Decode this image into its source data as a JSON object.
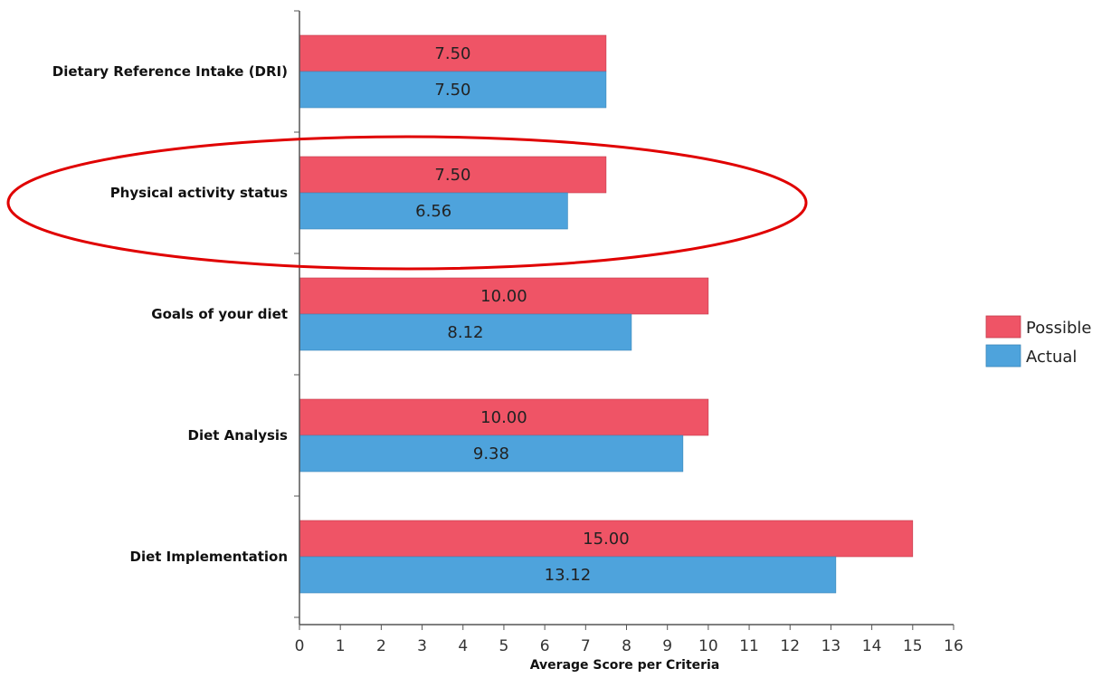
{
  "chart_data": {
    "type": "bar",
    "orientation": "horizontal",
    "categories": [
      "Dietary Reference Intake (DRI)",
      "Physical activity status",
      "Goals of your diet",
      "Diet Analysis",
      "Diet Implementation"
    ],
    "series": [
      {
        "name": "Possible",
        "color": "#ef5466",
        "values": [
          7.5,
          7.5,
          10.0,
          10.0,
          15.0
        ],
        "labels": [
          "7.50",
          "7.50",
          "10.00",
          "10.00",
          "15.00"
        ]
      },
      {
        "name": "Actual",
        "color": "#4ea3dc",
        "values": [
          7.5,
          6.56,
          8.12,
          9.38,
          13.12
        ],
        "labels": [
          "7.50",
          "6.56",
          "8.12",
          "9.38",
          "13.12"
        ]
      }
    ],
    "xlabel": "Average Score per Criteria",
    "xlim": [
      0,
      16
    ],
    "xticks": [
      "0",
      "1",
      "2",
      "3",
      "4",
      "5",
      "6",
      "7",
      "8",
      "9",
      "10",
      "11",
      "12",
      "13",
      "14",
      "15",
      "16"
    ],
    "grid": false,
    "legend_position": "right",
    "annotation": {
      "shape": "ellipse",
      "color": "#e00000",
      "highlights": "Physical activity status"
    }
  }
}
